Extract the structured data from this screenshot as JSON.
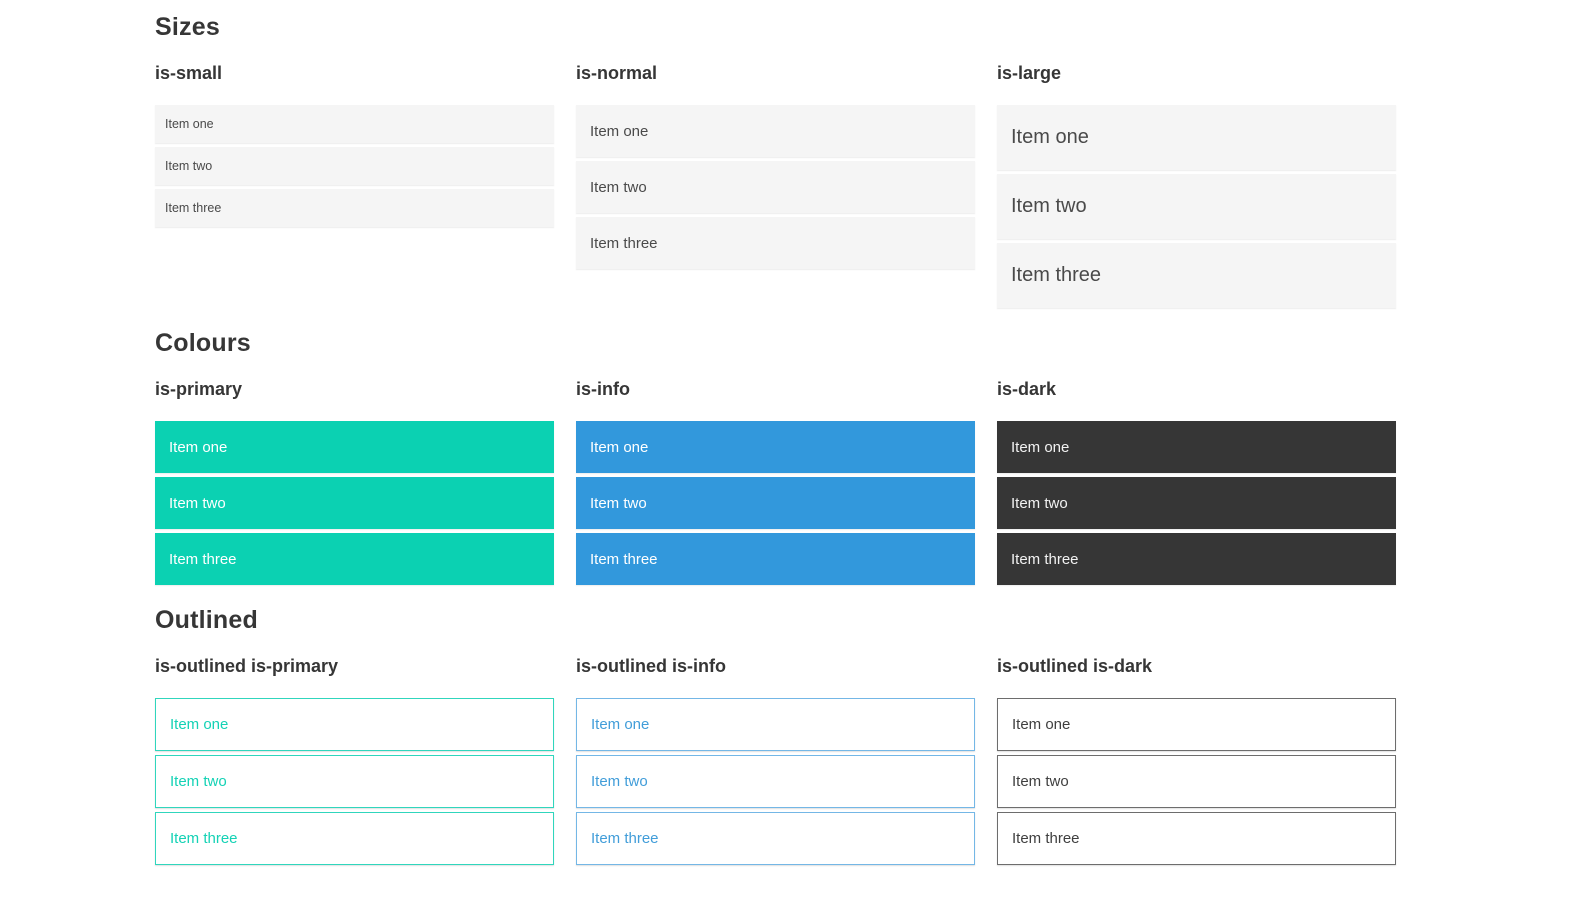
{
  "colors": {
    "primary": "#0bd1b2",
    "info": "#3298dc",
    "dark": "#363636",
    "neutral_item_bg": "#f5f5f5",
    "heading_text": "#363636",
    "item_text": "#4a4a4a"
  },
  "sections": [
    {
      "title": "Sizes",
      "groups": [
        {
          "label": "is-small",
          "items": [
            "Item one",
            "Item two",
            "Item three"
          ]
        },
        {
          "label": "is-normal",
          "items": [
            "Item one",
            "Item two",
            "Item three"
          ]
        },
        {
          "label": "is-large",
          "items": [
            "Item one",
            "Item two",
            "Item three"
          ]
        }
      ]
    },
    {
      "title": "Colours",
      "groups": [
        {
          "label": "is-primary",
          "items": [
            "Item one",
            "Item two",
            "Item three"
          ]
        },
        {
          "label": "is-info",
          "items": [
            "Item one",
            "Item two",
            "Item three"
          ]
        },
        {
          "label": "is-dark",
          "items": [
            "Item one",
            "Item two",
            "Item three"
          ]
        }
      ]
    },
    {
      "title": "Outlined",
      "groups": [
        {
          "label": "is-outlined is-primary",
          "items": [
            "Item one",
            "Item two",
            "Item three"
          ]
        },
        {
          "label": "is-outlined is-info",
          "items": [
            "Item one",
            "Item two",
            "Item three"
          ]
        },
        {
          "label": "is-outlined is-dark",
          "items": [
            "Item one",
            "Item two",
            "Item three"
          ]
        }
      ]
    }
  ]
}
